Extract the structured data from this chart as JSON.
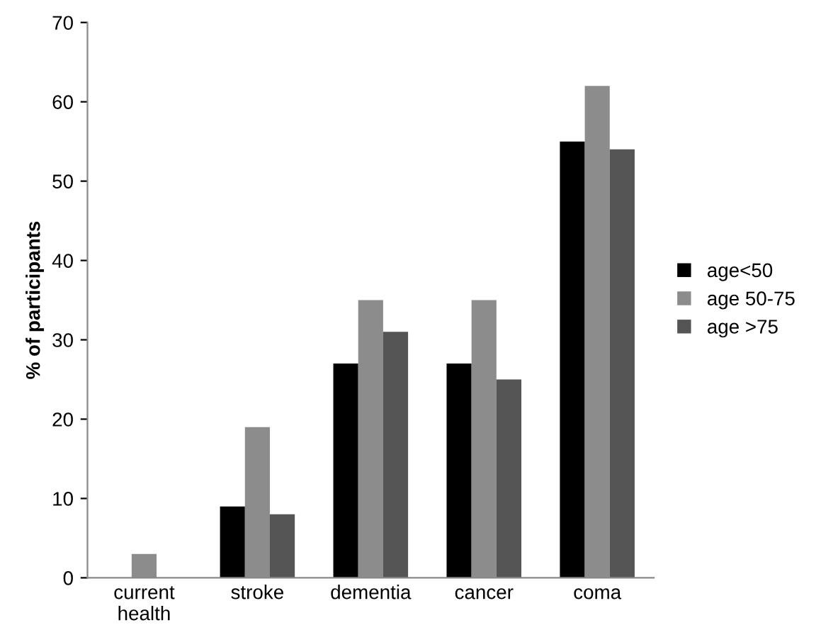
{
  "chart_data": {
    "type": "bar",
    "ylabel": "% of participants",
    "categories": [
      "current\nhealth",
      "stroke",
      "dementia",
      "cancer",
      "coma"
    ],
    "series": [
      {
        "name": "age<50",
        "color": "#000000",
        "values": [
          0,
          9,
          27,
          27,
          55
        ]
      },
      {
        "name": "age 50-75",
        "color": "#8c8c8c",
        "values": [
          3,
          19,
          35,
          35,
          62
        ]
      },
      {
        "name": "age >75",
        "color": "#555555",
        "values": [
          0,
          8,
          31,
          25,
          54
        ]
      }
    ],
    "ylim": [
      0,
      70
    ],
    "yticks": [
      0,
      10,
      20,
      30,
      40,
      50,
      60,
      70
    ],
    "grid": false,
    "legend": "right"
  }
}
